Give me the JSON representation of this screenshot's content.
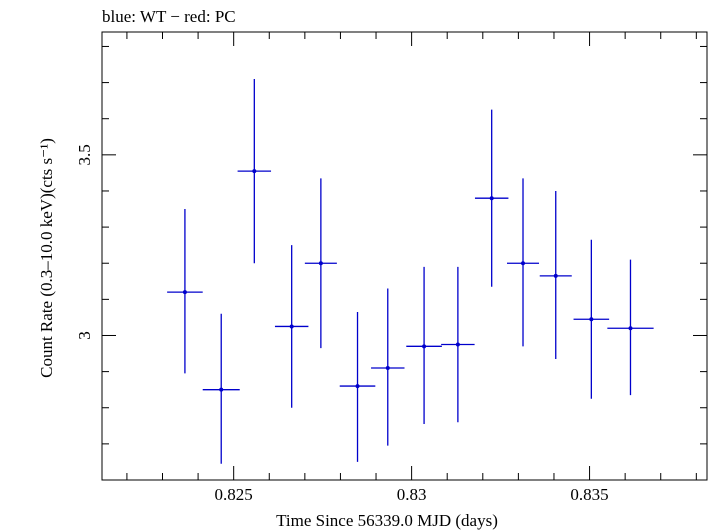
{
  "chart_data": {
    "type": "scatter",
    "title": "blue: WT − red: PC",
    "xlabel": "Time Since 56339.0 MJD (days)",
    "ylabel": "Count Rate (0.3–10.0 keV)(cts s⁻¹)",
    "xlim": [
      0.8213,
      0.8383
    ],
    "ylim": [
      2.6,
      3.84
    ],
    "x_ticks": [
      0.825,
      0.83,
      0.835
    ],
    "x_tick_labels": [
      "0.825",
      "0.83",
      "0.835"
    ],
    "y_ticks": [
      3,
      3.5
    ],
    "y_tick_labels": [
      "3",
      "3.5"
    ],
    "grid": false,
    "series": [
      {
        "color": "#0000cc",
        "points": [
          {
            "x": 0.82363,
            "xerr": 0.0005,
            "y": 3.12,
            "ylow": 2.895,
            "yhigh": 3.35
          },
          {
            "x": 0.82465,
            "xerr": 0.00052,
            "y": 2.85,
            "ylow": 2.645,
            "yhigh": 3.06
          },
          {
            "x": 0.82558,
            "xerr": 0.00047,
            "y": 3.455,
            "ylow": 3.2,
            "yhigh": 3.71
          },
          {
            "x": 0.82663,
            "xerr": 0.00047,
            "y": 3.025,
            "ylow": 2.8,
            "yhigh": 3.25
          },
          {
            "x": 0.82745,
            "xerr": 0.00045,
            "y": 3.2,
            "ylow": 2.965,
            "yhigh": 3.435
          },
          {
            "x": 0.82848,
            "xerr": 0.0005,
            "y": 2.86,
            "ylow": 2.65,
            "yhigh": 3.065
          },
          {
            "x": 0.82933,
            "xerr": 0.00047,
            "y": 2.91,
            "ylow": 2.695,
            "yhigh": 3.13
          },
          {
            "x": 0.83035,
            "xerr": 0.0005,
            "y": 2.97,
            "ylow": 2.755,
            "yhigh": 3.19
          },
          {
            "x": 0.8313,
            "xerr": 0.00047,
            "y": 2.975,
            "ylow": 2.76,
            "yhigh": 3.19
          },
          {
            "x": 0.83225,
            "xerr": 0.00047,
            "y": 3.38,
            "ylow": 3.135,
            "yhigh": 3.625
          },
          {
            "x": 0.83313,
            "xerr": 0.00045,
            "y": 3.2,
            "ylow": 2.97,
            "yhigh": 3.435
          },
          {
            "x": 0.83405,
            "xerr": 0.00045,
            "y": 3.165,
            "ylow": 2.935,
            "yhigh": 3.4
          },
          {
            "x": 0.83505,
            "xerr": 0.0005,
            "y": 3.045,
            "ylow": 2.825,
            "yhigh": 3.265
          },
          {
            "x": 0.83615,
            "xerr": 0.00065,
            "y": 3.02,
            "ylow": 2.835,
            "yhigh": 3.21
          }
        ]
      }
    ]
  }
}
